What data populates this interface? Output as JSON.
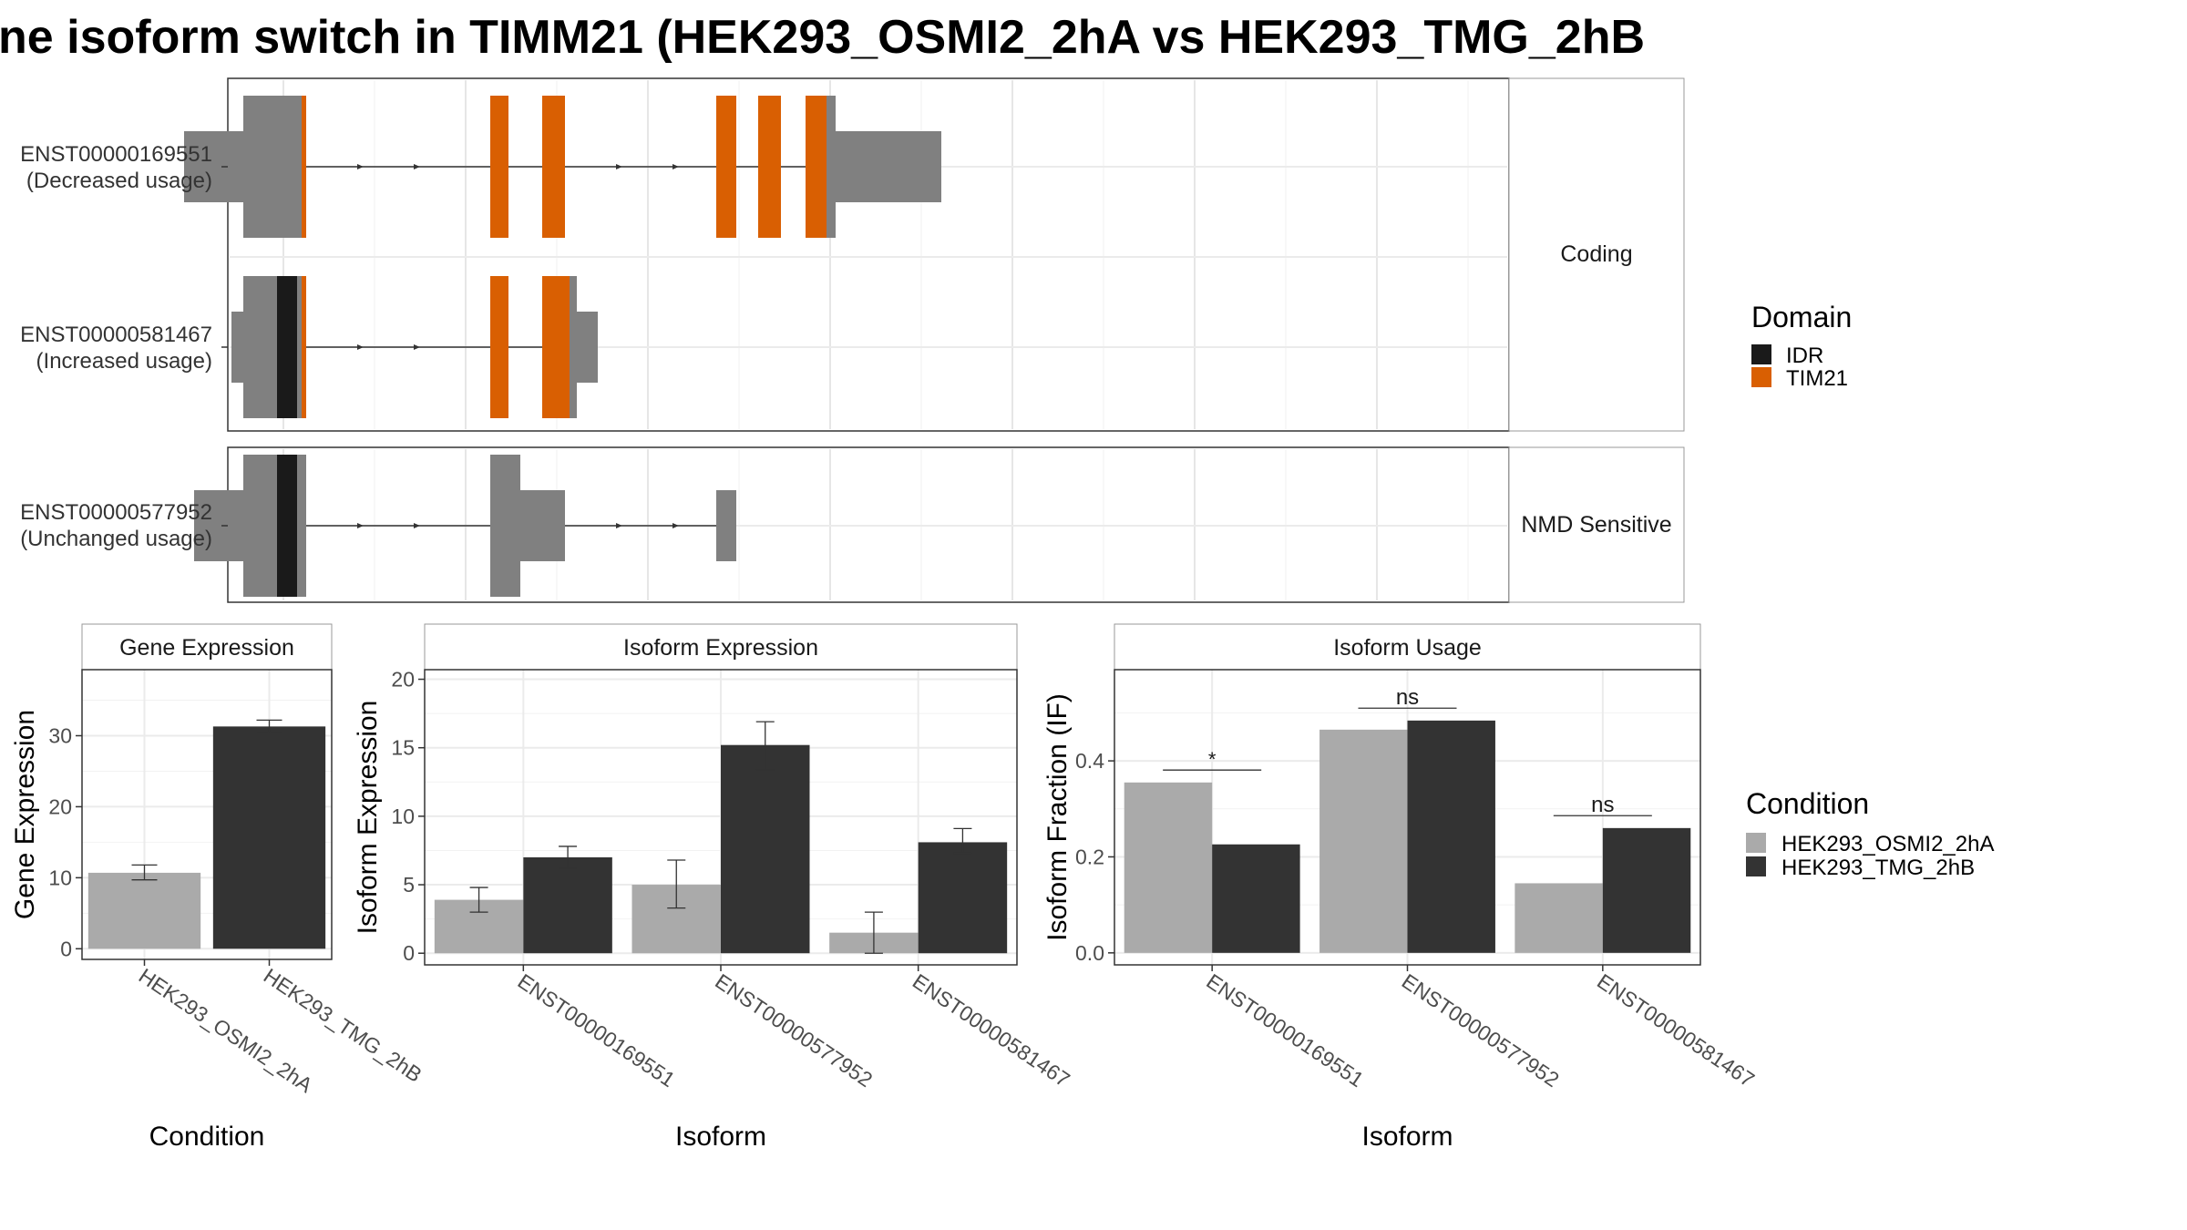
{
  "title": "ne isoform switch in TIMM21 (HEK293_OSMI2_2hA vs HEK293_TMG_2hB",
  "colors": {
    "exon": "#808080",
    "IDR": "#1a1a1a",
    "TIM21": "#d95f02",
    "cond_a": "#aaaaaa",
    "cond_b": "#333333"
  },
  "structure": {
    "facets": [
      "Coding",
      "NMD Sensitive"
    ],
    "transcripts": [
      {
        "id": "ENST00000169551",
        "usage": "(Decreased usage)",
        "facet": 0,
        "segments": [
          {
            "x0": 202,
            "x1": 267,
            "type": "utr"
          },
          {
            "x0": 267,
            "x1": 331,
            "type": "cds"
          },
          {
            "x0": 331,
            "x1": 336,
            "type": "TIM21"
          },
          {
            "x0": 538,
            "x1": 558,
            "type": "TIM21"
          },
          {
            "x0": 595,
            "x1": 620,
            "type": "TIM21"
          },
          {
            "x0": 786,
            "x1": 808,
            "type": "TIM21"
          },
          {
            "x0": 832,
            "x1": 857,
            "type": "TIM21"
          },
          {
            "x0": 884,
            "x1": 907,
            "type": "TIM21"
          },
          {
            "x0": 907,
            "x1": 917,
            "type": "cds"
          },
          {
            "x0": 917,
            "x1": 1033,
            "type": "utr"
          }
        ]
      },
      {
        "id": "ENST00000581467",
        "usage": "(Increased usage)",
        "facet": 0,
        "segments": [
          {
            "x0": 254,
            "x1": 267,
            "type": "utr"
          },
          {
            "x0": 267,
            "x1": 304,
            "type": "cds"
          },
          {
            "x0": 304,
            "x1": 326,
            "type": "IDR"
          },
          {
            "x0": 326,
            "x1": 331,
            "type": "cds"
          },
          {
            "x0": 331,
            "x1": 336,
            "type": "TIM21"
          },
          {
            "x0": 538,
            "x1": 558,
            "type": "TIM21"
          },
          {
            "x0": 595,
            "x1": 625,
            "type": "TIM21"
          },
          {
            "x0": 625,
            "x1": 633,
            "type": "cds"
          },
          {
            "x0": 633,
            "x1": 656,
            "type": "utr"
          }
        ]
      },
      {
        "id": "ENST00000577952",
        "usage": "(Unchanged usage)",
        "facet": 1,
        "segments": [
          {
            "x0": 213,
            "x1": 267,
            "type": "utr"
          },
          {
            "x0": 267,
            "x1": 304,
            "type": "cds"
          },
          {
            "x0": 304,
            "x1": 326,
            "type": "IDR"
          },
          {
            "x0": 326,
            "x1": 336,
            "type": "cds"
          },
          {
            "x0": 538,
            "x1": 571,
            "type": "cds"
          },
          {
            "x0": 571,
            "x1": 620,
            "type": "utr"
          },
          {
            "x0": 786,
            "x1": 808,
            "type": "utr"
          }
        ]
      }
    ],
    "legend": {
      "title": "Domain",
      "items": [
        "IDR",
        "TIM21"
      ]
    }
  },
  "chart_data": [
    {
      "type": "bar",
      "title": "Gene Expression",
      "xlabel": "Condition",
      "ylabel": "Gene Expression",
      "categories": [
        "HEK293_OSMI2_2hA",
        "HEK293_TMG_2hB"
      ],
      "values": [
        10.7,
        31.3
      ],
      "err_low": [
        9.7,
        30.5
      ],
      "err_high": [
        11.8,
        32.2
      ],
      "ylim": [
        -1.5,
        39.3
      ],
      "yticks": [
        0,
        10,
        20,
        30
      ]
    },
    {
      "type": "bar",
      "title": "Isoform Expression",
      "xlabel": "Isoform",
      "ylabel": "Isoform Expression",
      "categories": [
        "ENST00000169551",
        "ENST00000577952",
        "ENST00000581467"
      ],
      "series": [
        {
          "values": [
            3.9,
            5.0,
            1.5
          ],
          "err_low": [
            3.0,
            3.3,
            0.0
          ],
          "err_high": [
            4.8,
            6.8,
            3.0
          ]
        },
        {
          "values": [
            7.0,
            15.2,
            8.1
          ],
          "err_low": [
            6.2,
            13.4,
            7.3
          ],
          "err_high": [
            7.8,
            16.9,
            9.1
          ]
        }
      ],
      "ylim": [
        -0.85,
        20.7
      ],
      "yticks": [
        0,
        5,
        10,
        15,
        20
      ]
    },
    {
      "type": "bar",
      "title": "Isoform Usage",
      "xlabel": "Isoform",
      "ylabel": "Isoform Fraction (IF)",
      "categories": [
        "ENST00000169551",
        "ENST00000577952",
        "ENST00000581467"
      ],
      "series": [
        {
          "values": [
            0.355,
            0.465,
            0.145
          ]
        },
        {
          "values": [
            0.226,
            0.484,
            0.26
          ]
        }
      ],
      "significance": [
        "*",
        "ns",
        "ns"
      ],
      "ylim": [
        -0.025,
        0.59
      ],
      "yticks": [
        0.0,
        0.2,
        0.4
      ],
      "ytick_labels": [
        "0.0",
        "0.2",
        "0.4"
      ]
    }
  ],
  "condition_legend": {
    "title": "Condition",
    "items": [
      "HEK293_OSMI2_2hA",
      "HEK293_TMG_2hB"
    ]
  }
}
